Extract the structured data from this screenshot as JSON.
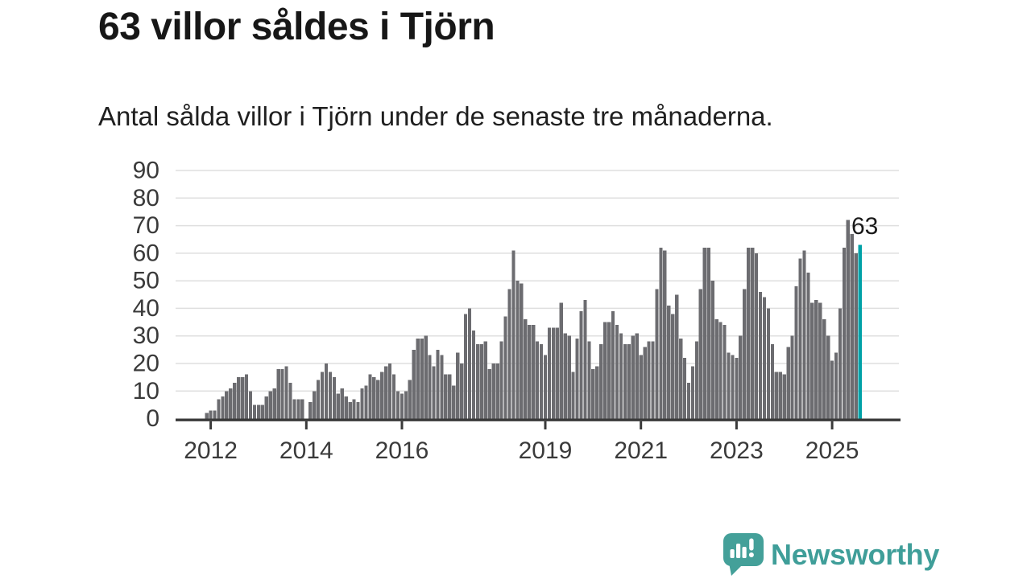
{
  "header": {
    "title": "63 villor såldes i Tjörn",
    "subtitle": "Antal sålda villor i Tjörn under de senaste tre månaderna."
  },
  "chart_data": {
    "type": "bar",
    "title": "63 villor såldes i Tjörn",
    "subtitle": "Antal sålda villor i Tjörn under de senaste tre månaderna.",
    "frequency": "monthly",
    "start_month": "2011-12",
    "values": [
      2,
      3,
      3,
      7,
      8,
      10,
      11,
      13,
      15,
      15,
      16,
      10,
      5,
      5,
      5,
      8,
      10,
      11,
      18,
      18,
      19,
      13,
      7,
      7,
      7,
      0,
      6,
      10,
      14,
      17,
      20,
      17,
      15,
      9,
      11,
      8,
      6,
      7,
      6,
      11,
      12,
      16,
      15,
      14,
      17,
      19,
      20,
      16,
      10,
      9,
      10,
      14,
      25,
      29,
      29,
      30,
      23,
      19,
      25,
      23,
      16,
      16,
      12,
      24,
      20,
      38,
      40,
      32,
      27,
      27,
      28,
      18,
      20,
      20,
      28,
      37,
      47,
      61,
      50,
      49,
      36,
      34,
      34,
      28,
      27,
      23,
      33,
      33,
      33,
      42,
      31,
      30,
      17,
      29,
      39,
      43,
      28,
      18,
      19,
      27,
      35,
      35,
      39,
      34,
      31,
      27,
      27,
      30,
      31,
      23,
      26,
      28,
      28,
      47,
      62,
      61,
      41,
      38,
      45,
      29,
      22,
      13,
      19,
      28,
      47,
      62,
      62,
      50,
      36,
      35,
      34,
      24,
      23,
      22,
      30,
      47,
      62,
      62,
      60,
      46,
      44,
      40,
      27,
      17,
      17,
      16,
      26,
      30,
      48,
      58,
      61,
      53,
      42,
      43,
      42,
      36,
      30,
      21,
      24,
      40,
      62,
      72,
      67,
      60,
      63
    ],
    "highlight": {
      "index": 164,
      "value": 63,
      "label": "63",
      "color": "#00A1A7"
    },
    "bar_color": "#6C6C70",
    "grid": true,
    "grid_color": "#DFDFDF",
    "axis_color": "#3A3A3A",
    "ylim": [
      0,
      90
    ],
    "y_ticks": [
      0,
      10,
      20,
      30,
      40,
      50,
      60,
      70,
      80,
      90
    ],
    "x_ticks": [
      {
        "label": "2012",
        "month_index": 1
      },
      {
        "label": "2014",
        "month_index": 25
      },
      {
        "label": "2016",
        "month_index": 49
      },
      {
        "label": "2019",
        "month_index": 85
      },
      {
        "label": "2021",
        "month_index": 109
      },
      {
        "label": "2023",
        "month_index": 133
      },
      {
        "label": "2025",
        "month_index": 157
      }
    ],
    "xlabel": "",
    "ylabel": ""
  },
  "footer": {
    "brand": "Newsworthy",
    "brand_color": "#3F9E99",
    "logo_icon": "speech-bubble-bar-chart-exclamation"
  }
}
